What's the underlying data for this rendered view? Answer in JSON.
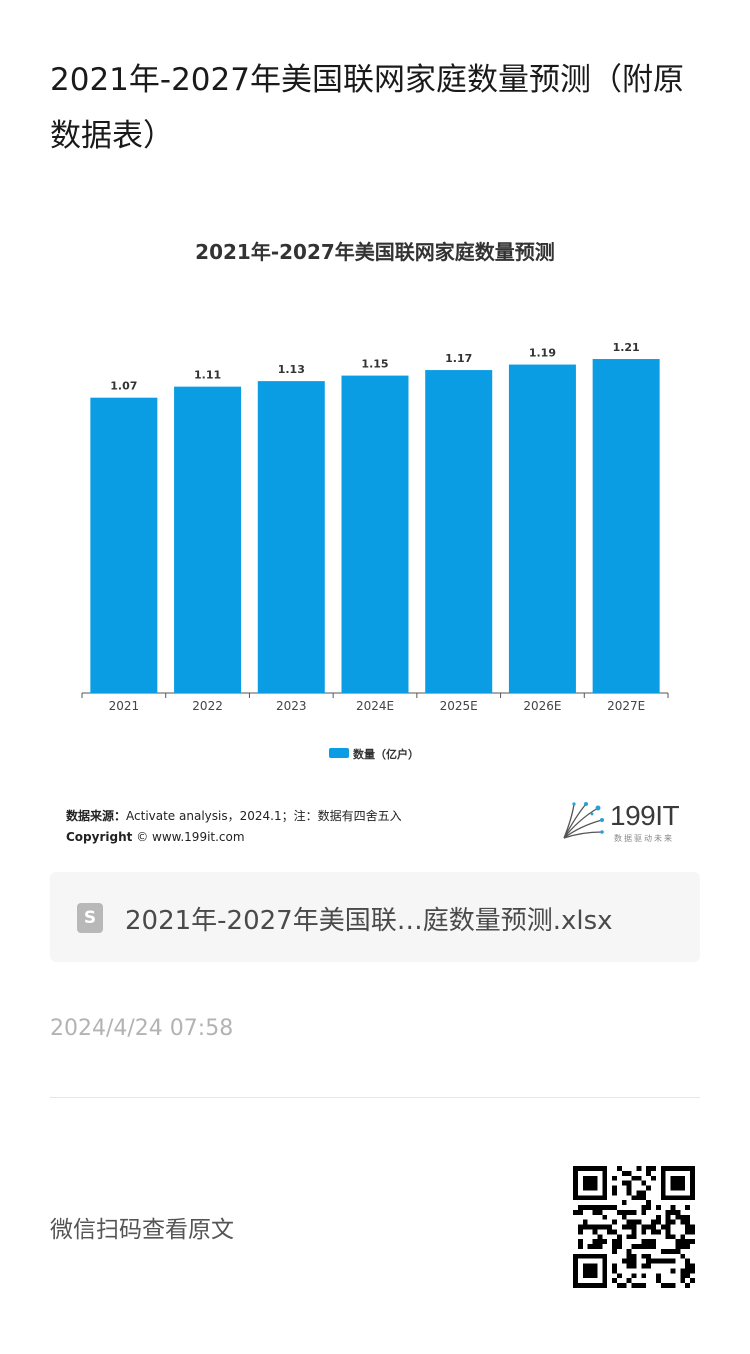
{
  "page": {
    "title": "2021年-2027年美国联网家庭数量预测（附原数据表）"
  },
  "chart_data": {
    "type": "bar",
    "title": "2021年-2027年美国联网家庭数量预测",
    "categories": [
      "2021",
      "2022",
      "2023",
      "2024E",
      "2025E",
      "2026E",
      "2027E"
    ],
    "series": [
      {
        "name": "数量（亿户）",
        "values": [
          1.07,
          1.11,
          1.13,
          1.15,
          1.17,
          1.19,
          1.21
        ],
        "color": "#0b9de4"
      }
    ],
    "ylim": [
      0,
      1.25
    ],
    "grid": false,
    "legend_position": "bottom-center",
    "data_labels": [
      "1.07",
      "1.11",
      "1.13",
      "1.15",
      "1.17",
      "1.19",
      "1.21"
    ],
    "legend_label": "数量（亿户）"
  },
  "source": {
    "label": "数据来源：",
    "text": "Activate analysis，2024.1；注：数据有四舍五入",
    "copyright_label": "Copyright",
    "copyright_text": "© www.199it.com"
  },
  "brand": {
    "name": "199IT",
    "tagline": "数据驱动未来"
  },
  "attachment": {
    "icon": "spreadsheet-file-icon",
    "icon_letter": "S",
    "filename": "2021年-2027年美国联…庭数量预测.xlsx"
  },
  "meta": {
    "timestamp": "2024/4/24 07:58",
    "scan_hint": "微信扫码查看原文"
  },
  "colors": {
    "bar": "#0b9de4",
    "title": "#333333"
  }
}
